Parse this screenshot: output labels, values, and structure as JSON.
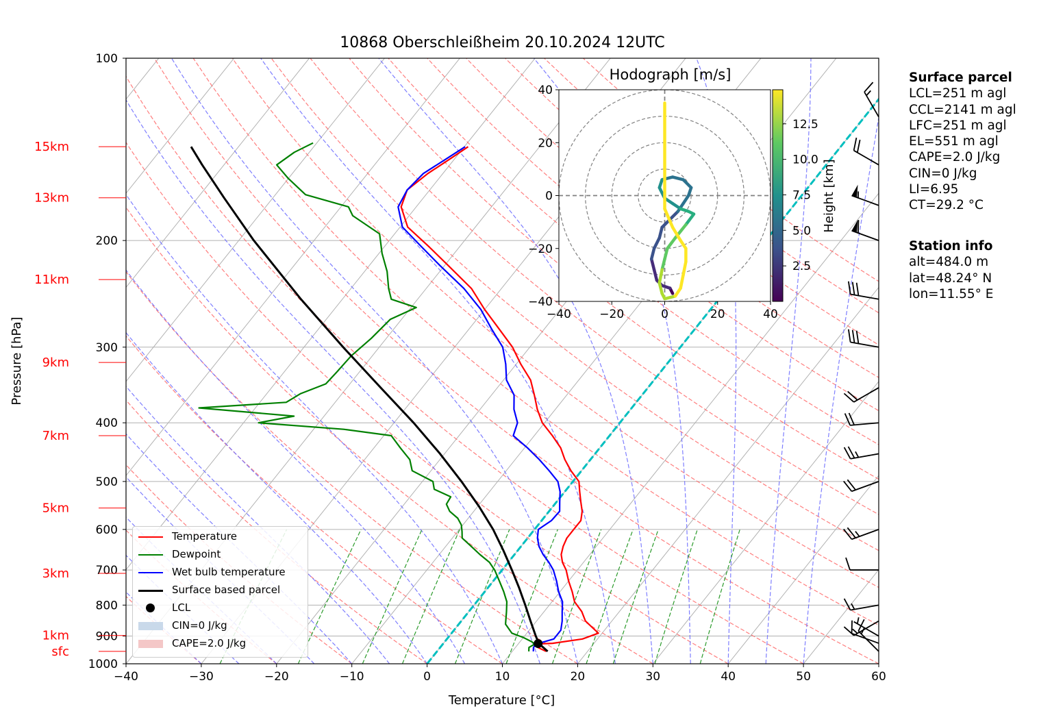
{
  "title": "10868 Oberschleißheim 20.10.2024 12UTC",
  "colors": {
    "temperature": "#ff0000",
    "dewpoint": "#008000",
    "wetbulb": "#0000ff",
    "parcel": "#000000",
    "height_labels": "#ff0000",
    "isotherm_zero": "#00bfbf",
    "grid": "#b0b0b0",
    "dry_adiabat": "#ff7070",
    "moist_adiabat": "#7070ff",
    "mixing_ratio": "#2a9a2a",
    "cin_fill": "#c9d9ea",
    "cape_fill": "#f4c7c7"
  },
  "surface_parcel": {
    "heading": "Surface parcel",
    "lines": [
      "LCL=251 m agl",
      "CCL=2141 m agl",
      "LFC=251 m agl",
      "EL=551 m agl",
      "CAPE=2.0 J/kg",
      "CIN=0 J/kg",
      "LI=6.95",
      "CT=29.2 °C"
    ]
  },
  "station_info": {
    "heading": "Station info",
    "lines": [
      "alt=484.0 m",
      "lat=48.24° N",
      "lon=11.55° E"
    ]
  },
  "legend": [
    {
      "label": "Temperature",
      "kind": "line",
      "color": "#ff0000"
    },
    {
      "label": "Dewpoint",
      "kind": "line",
      "color": "#008000"
    },
    {
      "label": "Wet bulb temperature",
      "kind": "line",
      "color": "#0000ff"
    },
    {
      "label": "Surface based parcel",
      "kind": "line",
      "color": "#000000"
    },
    {
      "label": "LCL",
      "kind": "dot",
      "color": "#000000"
    },
    {
      "label": "CIN=0 J/kg",
      "kind": "patch",
      "color": "#c9d9ea"
    },
    {
      "label": "CAPE=2.0 J/kg",
      "kind": "patch",
      "color": "#f4c7c7"
    }
  ],
  "chart_data": [
    {
      "type": "skew-t log-p",
      "title": "10868 Oberschleißheim 20.10.2024 12UTC",
      "xlabel": "Temperature [°C]",
      "ylabel": "Pressure [hPa]",
      "xlim": [
        -40,
        60
      ],
      "ylim": [
        1000,
        100
      ],
      "y_scale": "log",
      "x_ticks": [
        "−40",
        "−30",
        "−20",
        "−10",
        "0",
        "10",
        "20",
        "30",
        "40",
        "50",
        "60"
      ],
      "y_ticks": [
        "100",
        "200",
        "300",
        "400",
        "500",
        "600",
        "700",
        "800",
        "900",
        "1000"
      ],
      "height_labels": [
        {
          "label": "15km",
          "p": 140
        },
        {
          "label": "13km",
          "p": 170
        },
        {
          "label": "11km",
          "p": 232
        },
        {
          "label": "9km",
          "p": 318
        },
        {
          "label": "7km",
          "p": 420
        },
        {
          "label": "5km",
          "p": 553
        },
        {
          "label": "3km",
          "p": 709
        },
        {
          "label": "1km",
          "p": 898
        },
        {
          "label": "sfc",
          "p": 954
        }
      ],
      "series": [
        {
          "name": "Temperature",
          "points": [
            [
              954,
              14.5
            ],
            [
              940,
              13
            ],
            [
              928,
              12.2
            ],
            [
              925,
              14.5
            ],
            [
              910,
              18
            ],
            [
              890,
              19.5
            ],
            [
              870,
              18
            ],
            [
              850,
              16.5
            ],
            [
              820,
              15
            ],
            [
              790,
              13
            ],
            [
              760,
              11.6
            ],
            [
              730,
              10
            ],
            [
              700,
              8.5
            ],
            [
              680,
              7.2
            ],
            [
              660,
              6.2
            ],
            [
              640,
              5.6
            ],
            [
              620,
              5.2
            ],
            [
              600,
              5.2
            ],
            [
              580,
              5.2
            ],
            [
              560,
              4.4
            ],
            [
              540,
              3.2
            ],
            [
              520,
              2
            ],
            [
              500,
              0.8
            ],
            [
              480,
              -1.4
            ],
            [
              460,
              -3.4
            ],
            [
              440,
              -5.2
            ],
            [
              420,
              -7.6
            ],
            [
              400,
              -10.3
            ],
            [
              380,
              -12.4
            ],
            [
              360,
              -14.3
            ],
            [
              340,
              -16.4
            ],
            [
              320,
              -19.4
            ],
            [
              300,
              -22.3
            ],
            [
              280,
              -26
            ],
            [
              260,
              -30
            ],
            [
              240,
              -34
            ],
            [
              220,
              -39.5
            ],
            [
              205,
              -44
            ],
            [
              190,
              -49
            ],
            [
              176,
              -52
            ],
            [
              165,
              -53
            ],
            [
              155,
              -52
            ],
            [
              146,
              -50.5
            ],
            [
              140,
              -49.5
            ]
          ]
        },
        {
          "name": "Dewpoint",
          "points": [
            [
              954,
              12.2
            ],
            [
              940,
              11.8
            ],
            [
              928,
              12.2
            ],
            [
              920,
              11.6
            ],
            [
              905,
              10
            ],
            [
              890,
              8
            ],
            [
              860,
              6.2
            ],
            [
              820,
              5
            ],
            [
              790,
              4
            ],
            [
              760,
              2.5
            ],
            [
              730,
              0.8
            ],
            [
              700,
              -1
            ],
            [
              680,
              -2.5
            ],
            [
              660,
              -4.6
            ],
            [
              640,
              -6.6
            ],
            [
              620,
              -8.7
            ],
            [
              605,
              -9.4
            ],
            [
              590,
              -10.2
            ],
            [
              575,
              -11.4
            ],
            [
              560,
              -13.2
            ],
            [
              545,
              -14.4
            ],
            [
              530,
              -14.6
            ],
            [
              515,
              -17.6
            ],
            [
              500,
              -18.6
            ],
            [
              480,
              -22.5
            ],
            [
              460,
              -24
            ],
            [
              440,
              -26.5
            ],
            [
              420,
              -29
            ],
            [
              410,
              -36
            ],
            [
              400,
              -48
            ],
            [
              390,
              -44
            ],
            [
              378,
              -57.5
            ],
            [
              370,
              -46.5
            ],
            [
              358,
              -45.5
            ],
            [
              345,
              -43.2
            ],
            [
              330,
              -43
            ],
            [
              310,
              -42.8
            ],
            [
              290,
              -42
            ],
            [
              270,
              -41.5
            ],
            [
              258,
              -39.3
            ],
            [
              250,
              -43.5
            ],
            [
              240,
              -45
            ],
            [
              225,
              -47
            ],
            [
              210,
              -49.6
            ],
            [
              195,
              -52
            ],
            [
              182,
              -57.5
            ],
            [
              176,
              -59
            ],
            [
              168,
              -66
            ],
            [
              158,
              -70
            ],
            [
              150,
              -73
            ],
            [
              143,
              -72
            ],
            [
              138,
              -70.5
            ]
          ]
        },
        {
          "name": "Wet bulb temperature",
          "points": [
            [
              954,
              12.8
            ],
            [
              940,
              12.4
            ],
            [
              928,
              12.4
            ],
            [
              910,
              14.2
            ],
            [
              880,
              14.2
            ],
            [
              850,
              13.4
            ],
            [
              820,
              12.4
            ],
            [
              790,
              11.4
            ],
            [
              760,
              9.8
            ],
            [
              730,
              8.4
            ],
            [
              700,
              6.8
            ],
            [
              680,
              5.4
            ],
            [
              660,
              3.8
            ],
            [
              640,
              2.4
            ],
            [
              620,
              1.3
            ],
            [
              600,
              0.5
            ],
            [
              580,
              1.3
            ],
            [
              560,
              1.4
            ],
            [
              540,
              0.4
            ],
            [
              520,
              -0.6
            ],
            [
              500,
              -2
            ],
            [
              480,
              -4.3
            ],
            [
              460,
              -6.8
            ],
            [
              440,
              -9.6
            ],
            [
              420,
              -12.8
            ],
            [
              400,
              -13.6
            ],
            [
              380,
              -15.5
            ],
            [
              360,
              -17
            ],
            [
              340,
              -19.6
            ],
            [
              320,
              -21.4
            ],
            [
              300,
              -23.6
            ],
            [
              280,
              -27
            ],
            [
              260,
              -30.5
            ],
            [
              240,
              -35
            ],
            [
              220,
              -40.6
            ],
            [
              205,
              -45
            ],
            [
              190,
              -49.7
            ],
            [
              176,
              -52.4
            ],
            [
              165,
              -53
            ],
            [
              155,
              -52.6
            ],
            [
              146,
              -51
            ],
            [
              140,
              -49.9
            ]
          ]
        },
        {
          "name": "Surface based parcel",
          "points": [
            [
              954,
              14.7
            ],
            [
              926,
              12.7
            ],
            [
              900,
              11.5
            ],
            [
              850,
              9.2
            ],
            [
              800,
              6.8
            ],
            [
              750,
              4.2
            ],
            [
              700,
              1.3
            ],
            [
              650,
              -1.9
            ],
            [
              600,
              -5.5
            ],
            [
              550,
              -9.8
            ],
            [
              500,
              -14.8
            ],
            [
              450,
              -20.6
            ],
            [
              400,
              -27.4
            ],
            [
              350,
              -35.5
            ],
            [
              300,
              -44.8
            ],
            [
              250,
              -55.5
            ],
            [
              200,
              -68
            ],
            [
              170,
              -76.5
            ],
            [
              150,
              -82.9
            ],
            [
              140,
              -86.3
            ]
          ]
        }
      ],
      "lcl": {
        "p": 926,
        "t": 12.6
      },
      "wind_barbs": [
        {
          "p": 954,
          "dir": 315,
          "kt": 15
        },
        {
          "p": 925,
          "dir": 290,
          "kt": 10
        },
        {
          "p": 900,
          "dir": 300,
          "kt": 5
        },
        {
          "p": 850,
          "dir": 240,
          "kt": 15
        },
        {
          "p": 800,
          "dir": 260,
          "kt": 15
        },
        {
          "p": 700,
          "dir": 270,
          "kt": 10
        },
        {
          "p": 600,
          "dir": 250,
          "kt": 25
        },
        {
          "p": 500,
          "dir": 250,
          "kt": 20
        },
        {
          "p": 450,
          "dir": 260,
          "kt": 25
        },
        {
          "p": 400,
          "dir": 265,
          "kt": 20
        },
        {
          "p": 350,
          "dir": 240,
          "kt": 20
        },
        {
          "p": 300,
          "dir": 280,
          "kt": 30
        },
        {
          "p": 250,
          "dir": 280,
          "kt": 30
        },
        {
          "p": 200,
          "dir": 290,
          "kt": 60
        },
        {
          "p": 175,
          "dir": 290,
          "kt": 55
        },
        {
          "p": 150,
          "dir": 300,
          "kt": 20
        },
        {
          "p": 125,
          "dir": 330,
          "kt": 15
        }
      ]
    },
    {
      "type": "scatter",
      "title": "Hodograph [m/s]",
      "xlim": [
        -40,
        40
      ],
      "ylim": [
        -40,
        40
      ],
      "x_ticks": [
        "−40",
        "−20",
        "0",
        "20",
        "40"
      ],
      "y_ticks": [
        "−40",
        "−20",
        "0",
        "20",
        "40"
      ],
      "rings": [
        10,
        20,
        30,
        40
      ],
      "colorbar": {
        "label": "Height [km]",
        "ticks": [
          "2.5",
          "5.0",
          "7.5",
          "10.0",
          "12.5"
        ],
        "range": [
          0,
          14.9
        ]
      },
      "points": [
        [
          3,
          -37,
          0.5
        ],
        [
          2,
          -35,
          0.8
        ],
        [
          -1,
          -34,
          1.2
        ],
        [
          -3,
          -32,
          1.6
        ],
        [
          -4,
          -28,
          2.0
        ],
        [
          -5,
          -24,
          2.5
        ],
        [
          -4,
          -20,
          3.0
        ],
        [
          -2,
          -16,
          3.5
        ],
        [
          -1,
          -12,
          4.0
        ],
        [
          2,
          -9,
          4.3
        ],
        [
          5,
          -6,
          4.6
        ],
        [
          7,
          -3,
          4.9
        ],
        [
          9,
          0,
          5.2
        ],
        [
          10,
          3,
          5.5
        ],
        [
          7,
          6,
          5.8
        ],
        [
          3,
          7,
          6.1
        ],
        [
          -1,
          6,
          6.4
        ],
        [
          -2,
          3,
          6.7
        ],
        [
          0,
          -1,
          7.0
        ],
        [
          3,
          -3,
          7.5
        ],
        [
          6,
          -5,
          8.0
        ],
        [
          9,
          -6,
          8.6
        ],
        [
          11,
          -7,
          9.2
        ],
        [
          8,
          -11,
          9.8
        ],
        [
          4,
          -16,
          10.4
        ],
        [
          1,
          -20,
          11.0
        ],
        [
          0,
          -24,
          11.5
        ],
        [
          -1,
          -28,
          12.0
        ],
        [
          -2,
          -33,
          12.5
        ],
        [
          -1,
          -37,
          13.0
        ],
        [
          0,
          -39,
          13.5
        ],
        [
          4,
          -38,
          13.8
        ],
        [
          6,
          -35,
          14.0
        ],
        [
          7,
          -30,
          14.2
        ],
        [
          8,
          -25,
          14.4
        ],
        [
          8,
          -20,
          14.5
        ],
        [
          6,
          -17,
          14.6
        ],
        [
          3,
          -12,
          14.7
        ],
        [
          0,
          -5,
          14.8
        ],
        [
          0,
          10,
          14.85
        ],
        [
          0,
          20,
          14.87
        ],
        [
          0,
          30,
          14.88
        ],
        [
          0,
          35,
          14.9
        ]
      ]
    }
  ]
}
